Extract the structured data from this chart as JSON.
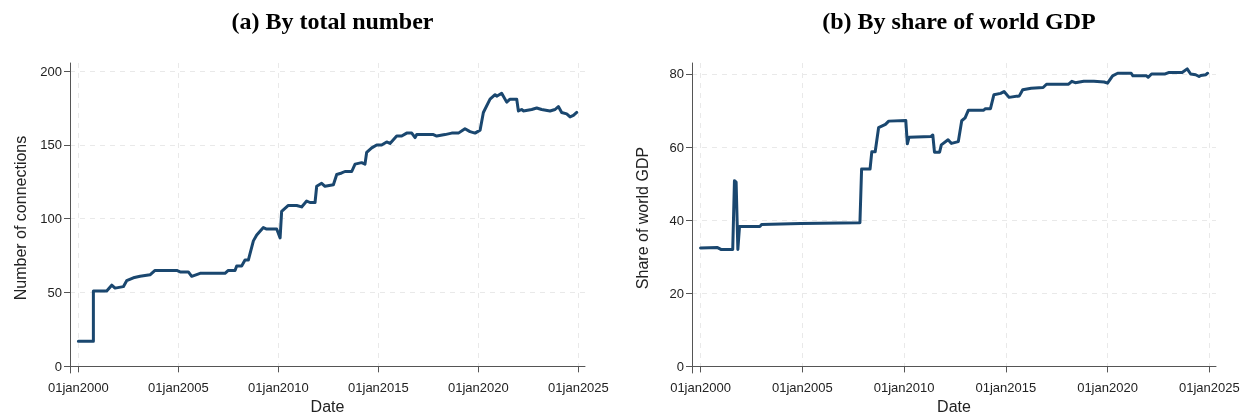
{
  "chart_data": [
    {
      "type": "line",
      "title": "(a) By total number",
      "xlabel": "Date",
      "ylabel": "Number of connections",
      "xlim": [
        "1999-08",
        "2025-05"
      ],
      "ylim": [
        -4.5,
        205.5
      ],
      "xticks": [
        {
          "value": "2000-01-01",
          "label": "01jan2000"
        },
        {
          "value": "2005-01-01",
          "label": "01jan2005"
        },
        {
          "value": "2010-01-01",
          "label": "01jan2010"
        },
        {
          "value": "2015-01-01",
          "label": "01jan2015"
        },
        {
          "value": "2020-01-01",
          "label": "01jan2020"
        },
        {
          "value": "2025-01-01",
          "label": "01jan2025"
        }
      ],
      "yticks": [
        0,
        50,
        100,
        150,
        200
      ],
      "grid": true,
      "series": [
        {
          "color": "#1a476f",
          "x": [
            "2000-01",
            "2000-10",
            "2000-10",
            "2001-06",
            "2001-09",
            "2001-11",
            "2002-04",
            "2002-06",
            "2002-10",
            "2003-02",
            "2003-08",
            "2003-11",
            "2004-12",
            "2005-02",
            "2005-07",
            "2005-09",
            "2006-02",
            "2007-05",
            "2007-07",
            "2007-11",
            "2007-12",
            "2008-03",
            "2008-05",
            "2008-07",
            "2008-10",
            "2008-12",
            "2009-04",
            "2009-06",
            "2009-12",
            "2010-02",
            "2010-03",
            "2010-05",
            "2010-07",
            "2010-12",
            "2011-03",
            "2011-06",
            "2011-08",
            "2011-11",
            "2011-12",
            "2012-03",
            "2012-05",
            "2012-10",
            "2012-12",
            "2013-03",
            "2013-05",
            "2013-09",
            "2013-11",
            "2014-03",
            "2014-05",
            "2014-06",
            "2014-09",
            "2014-12",
            "2015-03",
            "2015-06",
            "2015-08",
            "2015-12",
            "2016-03",
            "2016-06",
            "2016-09",
            "2016-11",
            "2016-12",
            "2017-10",
            "2017-12",
            "2018-05",
            "2018-09",
            "2019-01",
            "2019-05",
            "2019-08",
            "2019-11",
            "2020-02",
            "2020-04",
            "2020-08",
            "2020-11",
            "2020-12",
            "2021-03",
            "2021-06",
            "2021-08",
            "2021-12",
            "2022-01",
            "2022-03",
            "2022-04",
            "2022-09",
            "2022-12",
            "2023-03",
            "2023-08",
            "2023-11",
            "2024-01",
            "2024-03",
            "2024-06",
            "2024-08",
            "2024-10",
            "2024-12"
          ],
          "values": [
            17,
            17,
            51,
            51,
            55,
            53,
            54,
            58,
            60,
            61,
            62,
            65,
            65,
            64,
            64,
            61,
            63,
            63,
            65,
            65,
            68,
            68,
            72,
            72,
            85,
            89,
            94,
            93,
            93,
            87,
            105,
            107,
            109,
            109,
            108,
            112,
            111,
            111,
            122,
            124,
            122,
            123,
            130,
            131,
            132,
            132,
            137,
            138,
            137,
            145,
            148,
            150,
            150,
            152,
            151,
            156,
            156,
            158,
            158,
            155,
            157,
            157,
            156,
            157,
            158,
            158,
            161,
            159,
            158,
            160,
            172,
            181,
            184,
            183,
            185,
            179,
            181,
            181,
            173,
            174,
            173,
            174,
            175,
            174,
            173,
            174,
            176,
            172,
            171,
            169,
            170,
            172
          ]
        }
      ]
    },
    {
      "type": "line",
      "title": "(b) By share of world GDP",
      "xlabel": "Date",
      "ylabel": "Share of world GDP",
      "xlim": [
        "1999-08",
        "2025-05"
      ],
      "ylim": [
        -1.8,
        83
      ],
      "xticks": [
        {
          "value": "2000-01-01",
          "label": "01jan2000"
        },
        {
          "value": "2005-01-01",
          "label": "01jan2005"
        },
        {
          "value": "2010-01-01",
          "label": "01jan2010"
        },
        {
          "value": "2015-01-01",
          "label": "01jan2015"
        },
        {
          "value": "2020-01-01",
          "label": "01jan2020"
        },
        {
          "value": "2025-01-01",
          "label": "01jan2025"
        }
      ],
      "yticks": [
        0,
        20,
        40,
        60,
        80
      ],
      "grid": true,
      "series": [
        {
          "color": "#1a476f",
          "x": [
            "2000-01",
            "2000-11",
            "2001-01",
            "2001-08",
            "2001-09",
            "2001-10",
            "2001-11",
            "2001-12",
            "2002-12",
            "2003-01",
            "2004-12",
            "2007-11",
            "2007-12",
            "2008-05",
            "2008-06",
            "2008-08",
            "2008-10",
            "2009-02",
            "2009-04",
            "2010-02",
            "2010-03",
            "2010-04",
            "2011-05",
            "2011-06",
            "2011-07",
            "2011-10",
            "2011-11",
            "2012-03",
            "2012-05",
            "2012-09",
            "2012-11",
            "2013-01",
            "2013-03",
            "2013-12",
            "2014-01",
            "2014-04",
            "2014-06",
            "2014-10",
            "2014-12",
            "2015-03",
            "2015-09",
            "2015-11",
            "2016-04",
            "2016-11",
            "2017-01",
            "2018-02",
            "2018-04",
            "2018-06",
            "2018-11",
            "2019-05",
            "2019-11",
            "2020-01",
            "2020-04",
            "2020-07",
            "2021-03",
            "2021-04",
            "2021-12",
            "2022-01",
            "2022-03",
            "2022-11",
            "2023-01",
            "2023-09",
            "2023-12",
            "2024-02",
            "2024-05",
            "2024-07",
            "2024-08",
            "2024-11",
            "2024-12"
          ],
          "values": [
            32.4,
            32.5,
            32,
            32,
            50.8,
            50.4,
            32,
            38.3,
            38.3,
            38.8,
            39.1,
            39.3,
            54,
            54,
            58.7,
            58.7,
            65.3,
            66.2,
            67.1,
            67.3,
            60.9,
            62.7,
            62.9,
            63.3,
            58.6,
            58.6,
            60.6,
            62,
            61,
            61.5,
            67.2,
            68,
            70.1,
            70.1,
            70.5,
            70.5,
            74.3,
            74.7,
            75.2,
            73.6,
            74,
            75.7,
            76.1,
            76.3,
            77.2,
            77.2,
            78,
            77.6,
            78,
            78,
            77.8,
            77.5,
            79.5,
            80.2,
            80.2,
            79.5,
            79.5,
            79.1,
            80,
            80,
            80.4,
            80.4,
            81.4,
            80,
            79.8,
            79.3,
            79.6,
            79.8,
            80.2
          ]
        }
      ]
    }
  ]
}
